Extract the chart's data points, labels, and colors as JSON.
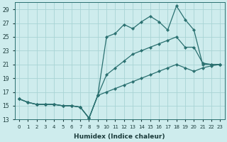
{
  "xlabel": "Humidex (Indice chaleur)",
  "ylabel": "",
  "background_color": "#ceeced",
  "grid_color": "#a8d4d4",
  "line_color": "#2a7070",
  "xlim": [
    -0.5,
    23.5
  ],
  "ylim": [
    13,
    30
  ],
  "yticks": [
    13,
    15,
    17,
    19,
    21,
    23,
    25,
    27,
    29
  ],
  "xticks": [
    0,
    1,
    2,
    3,
    4,
    5,
    6,
    7,
    8,
    9,
    10,
    11,
    12,
    13,
    14,
    15,
    16,
    17,
    18,
    19,
    20,
    21,
    22,
    23
  ],
  "x": [
    0,
    1,
    2,
    3,
    4,
    5,
    6,
    7,
    8,
    9,
    10,
    11,
    12,
    13,
    14,
    15,
    16,
    17,
    18,
    19,
    20,
    21,
    22,
    23
  ],
  "line1": [
    16,
    15.5,
    15.2,
    15.2,
    15.2,
    15.0,
    15.0,
    14.8,
    13.2,
    16.5,
    25.0,
    25.5,
    26.8,
    26.2,
    27.2,
    28.0,
    27.2,
    26.0,
    29.5,
    27.5,
    26.0,
    21.0,
    21.0,
    21.0
  ],
  "line2": [
    16,
    15.5,
    15.2,
    15.2,
    15.2,
    15.0,
    15.0,
    14.8,
    13.2,
    16.5,
    19.5,
    20.5,
    21.5,
    22.5,
    23.0,
    23.5,
    24.0,
    24.5,
    25.0,
    23.5,
    23.5,
    21.2,
    21.0,
    21.0
  ],
  "line3": [
    16,
    15.5,
    15.2,
    15.2,
    15.2,
    15.0,
    15.0,
    14.8,
    13.2,
    16.5,
    17.0,
    17.5,
    18.0,
    18.5,
    19.0,
    19.5,
    20.0,
    20.5,
    21.0,
    20.5,
    20.0,
    20.5,
    20.8,
    21.0
  ]
}
